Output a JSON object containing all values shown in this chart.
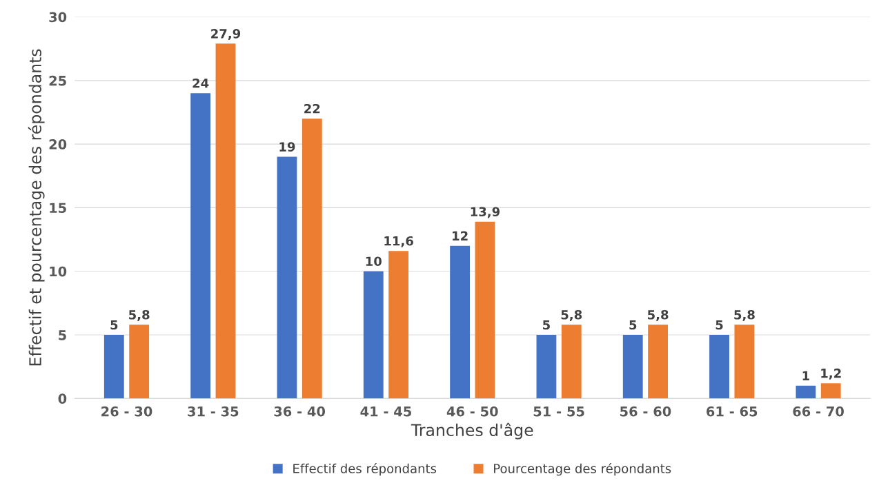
{
  "chart_data": {
    "type": "bar",
    "xlabel": "Tranches d'âge",
    "ylabel": "Effectif et pourcentage des répondants",
    "categories": [
      "26 - 30",
      "31 - 35",
      "36 - 40",
      "41 - 45",
      "46 - 50",
      "51 - 55",
      "56 - 60",
      "61 - 65",
      "66 - 70"
    ],
    "series": [
      {
        "name": "Effectif des répondants",
        "color": "#4472c4",
        "values": [
          5,
          24,
          19,
          10,
          12,
          5,
          5,
          5,
          1
        ],
        "value_labels": [
          "5",
          "24",
          "19",
          "10",
          "12",
          "5",
          "5",
          "5",
          "1"
        ]
      },
      {
        "name": "Pourcentage des répondants",
        "color": "#ed7d31",
        "values": [
          5.8,
          27.9,
          22,
          11.6,
          13.9,
          5.8,
          5.8,
          5.8,
          1.2
        ],
        "value_labels": [
          "5,8",
          "27,9",
          "22",
          "11,6",
          "13,9",
          "5,8",
          "5,8",
          "5,8",
          "1,2"
        ]
      }
    ],
    "ylim": [
      0,
      30
    ],
    "yticks": [
      0,
      5,
      10,
      15,
      20,
      25,
      30
    ],
    "grid": "y",
    "legend": "bottom"
  }
}
